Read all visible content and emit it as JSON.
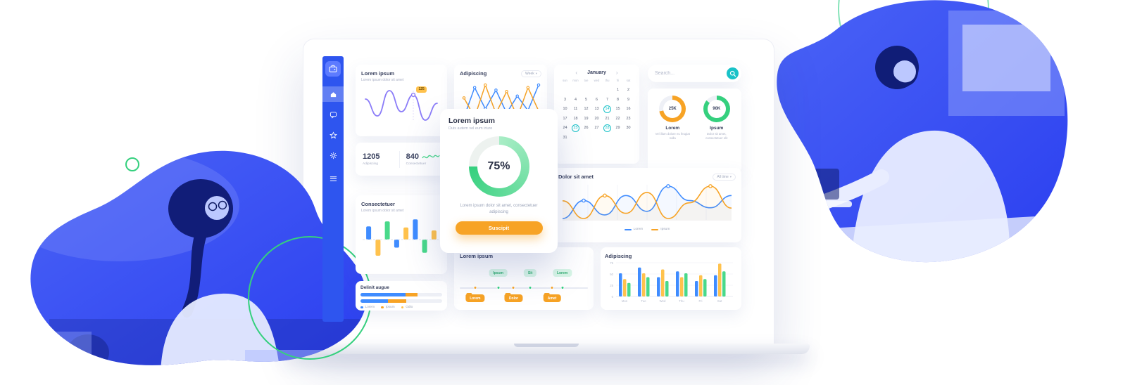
{
  "theme": {
    "sidebar_blue": "#2e55ef",
    "teal": "#19c2c8",
    "orange": "#f7a325",
    "green": "#35d07e",
    "purple": "#8b7cf8",
    "yellow": "#ffc24d",
    "chart_blue": "#3f8cff"
  },
  "sidebar": {
    "icons": [
      "wallet",
      "home",
      "chat",
      "star",
      "gear",
      "menu"
    ],
    "active": "home"
  },
  "cards": {
    "lorem_line": {
      "title": "Lorem ipsum",
      "subtitle": "Lorem ipsum dolor sit amet",
      "badge": "125",
      "color": "#8b7cf8",
      "values": [
        26,
        10,
        34,
        14,
        30,
        6,
        22
      ]
    },
    "adipiscing": {
      "title": "Adipiscing",
      "range_label": "Week",
      "series": [
        {
          "color": "#3f8cff",
          "values": [
            20,
            55,
            30,
            52,
            25,
            45,
            28,
            58
          ]
        },
        {
          "color": "#f7a325",
          "values": [
            40,
            25,
            50,
            28,
            45,
            25,
            48,
            30
          ]
        }
      ]
    },
    "calendar": {
      "title": "January",
      "day_headers": [
        "sun",
        "mon",
        "tue",
        "wed",
        "thu",
        "fri",
        "sat"
      ],
      "weeks": [
        [
          "",
          "",
          "",
          "",
          "",
          "1",
          "2"
        ],
        [
          "3",
          "4",
          "5",
          "6",
          "7",
          "8",
          "9"
        ],
        [
          "10",
          "11",
          "12",
          "13",
          "14",
          "15",
          "16"
        ],
        [
          "17",
          "18",
          "19",
          "20",
          "21",
          "22",
          "23"
        ],
        [
          "24",
          "25",
          "26",
          "27",
          "28",
          "29",
          "30"
        ],
        [
          "31",
          "",
          "",
          "",
          "",
          "",
          ""
        ]
      ],
      "highlighted": [
        "14",
        "25",
        "28"
      ]
    },
    "search": {
      "placeholder": "Search..."
    },
    "donuts": {
      "items": [
        {
          "value": "25K",
          "pct": 72,
          "color": "#f7a325",
          "label": "Lorem",
          "sub": "Vel illum dolore eu feugiat nulla"
        },
        {
          "value": "90K",
          "pct": 86,
          "color": "#35d07e",
          "label": "Ipsum",
          "sub": "Dolor sit amet, consectetuer elit"
        }
      ]
    },
    "stats": {
      "items": [
        {
          "value": "1205",
          "label": "Adipiscing"
        },
        {
          "value": "840",
          "label": "Consectetuer"
        }
      ]
    },
    "consectetuer": {
      "title": "Consectetuer",
      "subtitle": "Lorem ipsum dolor sit amet",
      "bars": {
        "values": [
          26,
          -32,
          36,
          -16,
          24,
          40,
          -26,
          18
        ],
        "colors": [
          "#3f8cff",
          "#ffc24d",
          "#49d98a",
          "#3f8cff",
          "#ffc24d",
          "#3f8cff",
          "#49d98a",
          "#ffc24d"
        ]
      }
    },
    "modal": {
      "title": "Lorem ipsum",
      "subtitle": "Duis autem vel eum iriure",
      "percent_label": "75%",
      "pct": 75,
      "color": "#35d07e",
      "body": "Lorem ipsum dolor sit amet, consectetuer adipiscing",
      "button_label": "Suscipit"
    },
    "dolor": {
      "title": "Dolor sit amet",
      "range_label": "All time",
      "legend": [
        {
          "label": "Lorem",
          "color": "#3f8cff"
        },
        {
          "label": "Ipsum",
          "color": "#f7a325"
        }
      ],
      "series": [
        {
          "color": "#3f8cff",
          "values": [
            30,
            55,
            35,
            62,
            40,
            75,
            55,
            45,
            62
          ],
          "dots": [
            1,
            5
          ]
        },
        {
          "color": "#f7a325",
          "values": [
            52,
            35,
            57,
            40,
            60,
            35,
            50,
            66,
            45
          ],
          "dots": [
            2,
            7
          ]
        }
      ]
    },
    "timeline": {
      "title": "Lorem ipsum",
      "top_tags": [
        {
          "label": "Ipsum",
          "x": 0.3
        },
        {
          "label": "Sit",
          "x": 0.55
        },
        {
          "label": "Lorem",
          "x": 0.8
        }
      ],
      "bottom_tags": [
        {
          "label": "Lorem",
          "x": 0.12
        },
        {
          "label": "Dolor",
          "x": 0.42
        },
        {
          "label": "Amet",
          "x": 0.72
        }
      ]
    },
    "grouped": {
      "title": "Adipiscing",
      "categories": [
        "Mon",
        "Tue",
        "Wed",
        "Thu",
        "Fri",
        "Sat"
      ],
      "yticks": [
        "0",
        "25",
        "50",
        "75"
      ],
      "series": [
        {
          "color": "#3f8cff",
          "values": [
            60,
            75,
            50,
            65,
            40,
            55
          ]
        },
        {
          "color": "#ffc24d",
          "values": [
            45,
            60,
            70,
            50,
            55,
            85
          ]
        },
        {
          "color": "#49d98a",
          "values": [
            35,
            50,
            40,
            60,
            45,
            65
          ]
        }
      ]
    },
    "delinit": {
      "title": "Delinit augue",
      "colors": [
        "#3f8cff",
        "#f7a325"
      ],
      "bars": [
        [
          55,
          15
        ],
        [
          34,
          22
        ]
      ],
      "legend": [
        {
          "label": "Lorem",
          "color": "#3f8cff"
        },
        {
          "label": "Ipsum",
          "color": "#f7a325"
        },
        {
          "label": "Odio",
          "color": "#ffc24d"
        }
      ]
    }
  }
}
